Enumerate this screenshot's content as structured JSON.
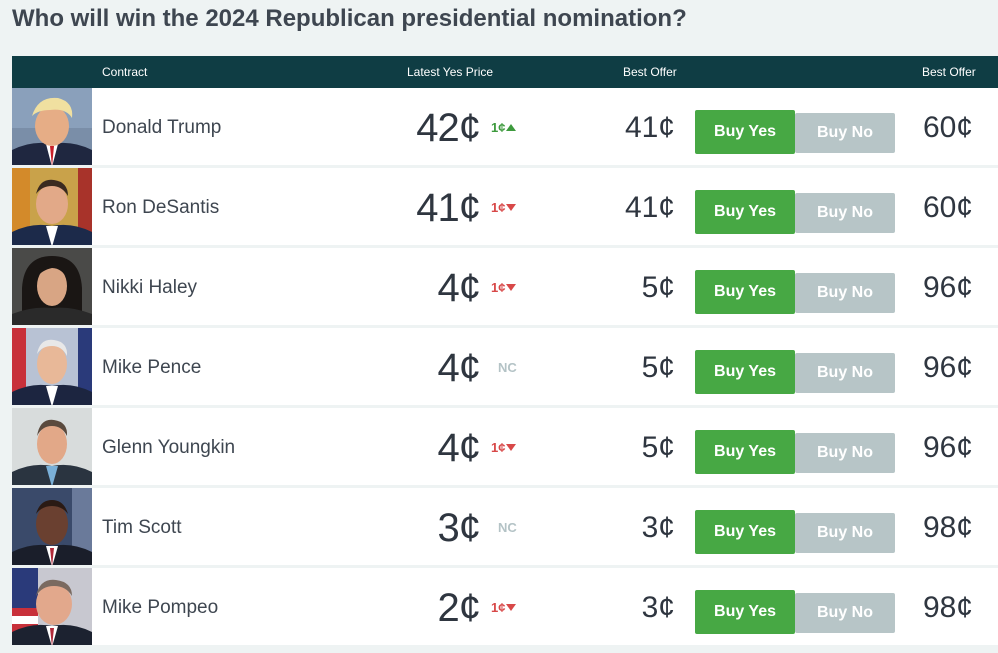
{
  "page": {
    "title": "Who will win the 2024 Republican presidential nomination?"
  },
  "table": {
    "headers": {
      "contract": "Contract",
      "latest_yes_price": "Latest Yes Price",
      "best_offer_yes": "Best Offer",
      "best_offer_no": "Best Offer"
    },
    "rows": [
      {
        "name": "Donald Trump",
        "price": "42¢",
        "change": "1¢",
        "direction": "up",
        "best_offer_yes": "41¢",
        "buy_yes": "Buy Yes",
        "buy_no": "Buy No",
        "best_offer_no": "60¢"
      },
      {
        "name": "Ron DeSantis",
        "price": "41¢",
        "change": "1¢",
        "direction": "down",
        "best_offer_yes": "41¢",
        "buy_yes": "Buy Yes",
        "buy_no": "Buy No",
        "best_offer_no": "60¢"
      },
      {
        "name": "Nikki Haley",
        "price": "4¢",
        "change": "1¢",
        "direction": "down",
        "best_offer_yes": "5¢",
        "buy_yes": "Buy Yes",
        "buy_no": "Buy No",
        "best_offer_no": "96¢"
      },
      {
        "name": "Mike Pence",
        "price": "4¢",
        "change": "NC",
        "direction": "none",
        "best_offer_yes": "5¢",
        "buy_yes": "Buy Yes",
        "buy_no": "Buy No",
        "best_offer_no": "96¢"
      },
      {
        "name": "Glenn Youngkin",
        "price": "4¢",
        "change": "1¢",
        "direction": "down",
        "best_offer_yes": "5¢",
        "buy_yes": "Buy Yes",
        "buy_no": "Buy No",
        "best_offer_no": "96¢"
      },
      {
        "name": "Tim Scott",
        "price": "3¢",
        "change": "NC",
        "direction": "none",
        "best_offer_yes": "3¢",
        "buy_yes": "Buy Yes",
        "buy_no": "Buy No",
        "best_offer_no": "98¢"
      },
      {
        "name": "Mike Pompeo",
        "price": "2¢",
        "change": "1¢",
        "direction": "down",
        "best_offer_yes": "3¢",
        "buy_yes": "Buy Yes",
        "buy_no": "Buy No",
        "best_offer_no": "98¢"
      }
    ]
  },
  "colors": {
    "header_bg": "#0f3d44",
    "buy_yes": "#47a844",
    "buy_no": "#b7c5c7",
    "up": "#3d9a3d",
    "down": "#d84848",
    "no_change": "#b4c3c6"
  },
  "icons": {
    "up": "arrow-up-icon",
    "down": "arrow-down-icon"
  }
}
